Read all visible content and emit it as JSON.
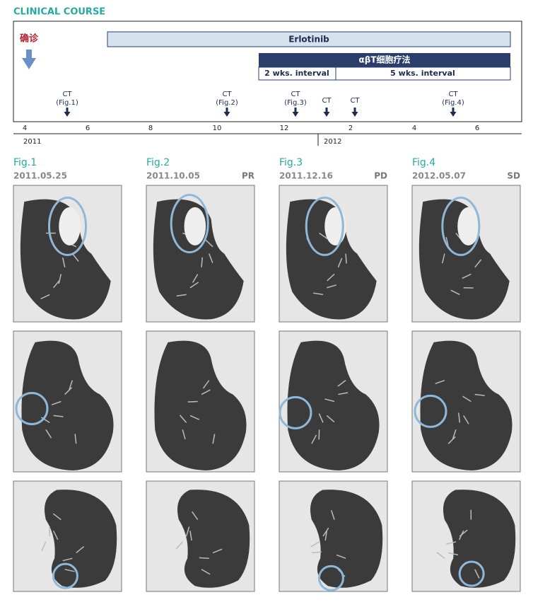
{
  "header": {
    "title": "CLINICAL COURSE"
  },
  "timeline": {
    "diagnosis": "确诊",
    "treatments": [
      "Erlotinib",
      "αβT细胞疗法"
    ],
    "intervals": [
      "2 wks. interval",
      "5 wks. interval"
    ],
    "ct_markers": [
      {
        "label": "CT",
        "ref": "(Fig.1)"
      },
      {
        "label": "CT",
        "ref": "(Fig.2)"
      },
      {
        "label": "CT",
        "ref": "(Fig.3)"
      },
      {
        "label": "CT"
      },
      {
        "label": "CT"
      },
      {
        "label": "CT",
        "ref": "(Fig.4)"
      }
    ],
    "month_ticks": [
      "4",
      "6",
      "8",
      "10",
      "12",
      "2",
      "4",
      "6"
    ],
    "years": [
      "2011",
      "2012"
    ]
  },
  "figures": [
    {
      "label": "Fig.1",
      "date": "2011.05.25"
    },
    {
      "label": "Fig.2",
      "date": "2011.10.05",
      "response": "PR"
    },
    {
      "label": "Fig.3",
      "date": "2011.12.16",
      "response": "PD"
    },
    {
      "label": "Fig.4",
      "date": "2012.05.07",
      "response": "SD"
    }
  ]
}
